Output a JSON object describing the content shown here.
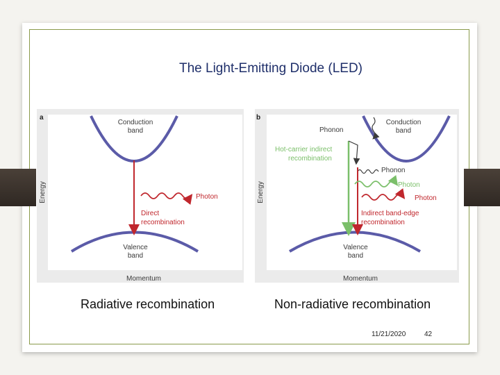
{
  "slide": {
    "title": "The Light-Emitting Diode (LED)",
    "caption_left": "Radiative recombination",
    "caption_right": "Non-radiative recombination",
    "date": "11/21/2020",
    "page_number": "42"
  },
  "figure": {
    "panel_a": {
      "letter": "a",
      "conduction_band": [
        "Conduction",
        "band"
      ],
      "valence_band": [
        "Valence",
        "band"
      ],
      "photon": "Photon",
      "direct_recombination": [
        "Direct",
        "recombination"
      ],
      "y_axis": "Energy",
      "x_axis": "Momentum"
    },
    "panel_b": {
      "letter": "b",
      "conduction_band": [
        "Conduction",
        "band"
      ],
      "valence_band": [
        "Valence",
        "band"
      ],
      "phonon_top": "Phonon",
      "hot_carrier": [
        "Hot-carrier indirect",
        "recombination"
      ],
      "phonon_mid": "Phonon",
      "photon_green": "Photon",
      "photon_red": "Photon",
      "indirect_band_edge": [
        "Indirect band-edge",
        "recombination"
      ],
      "y_axis": "Energy",
      "x_axis": "Momentum"
    }
  },
  "colors": {
    "band_curve": "#5b5ba8",
    "red_arrow": "#c0272d",
    "green_arrow": "#7bbf6a",
    "label_text": "#3a3a3a",
    "red_text": "#c0272d",
    "green_text": "#7bbf6a",
    "title_text": "#1f2f6a"
  }
}
